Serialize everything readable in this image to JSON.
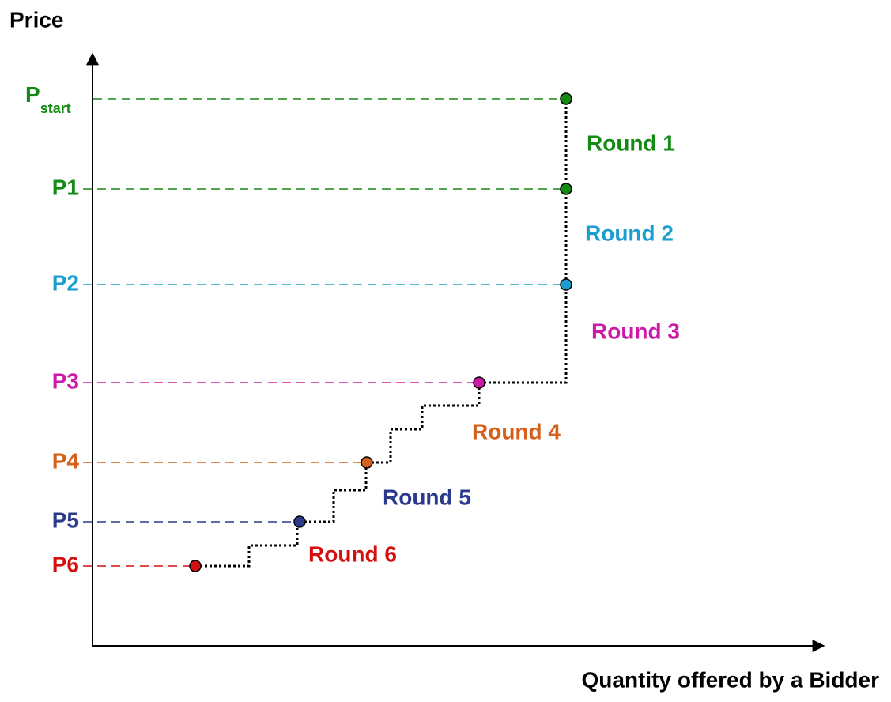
{
  "y_axis_label": "Price",
  "x_axis_label": "Quantity offered by a Bidder",
  "price_levels": [
    {
      "label": "P",
      "subscript": "start"
    },
    {
      "label": "P1"
    },
    {
      "label": "P2"
    },
    {
      "label": "P3"
    },
    {
      "label": "P4"
    },
    {
      "label": "P5"
    },
    {
      "label": "P6"
    }
  ],
  "rounds": [
    "Round 1",
    "Round 2",
    "Round 3",
    "Round 4",
    "Round 5",
    "Round 6"
  ]
}
